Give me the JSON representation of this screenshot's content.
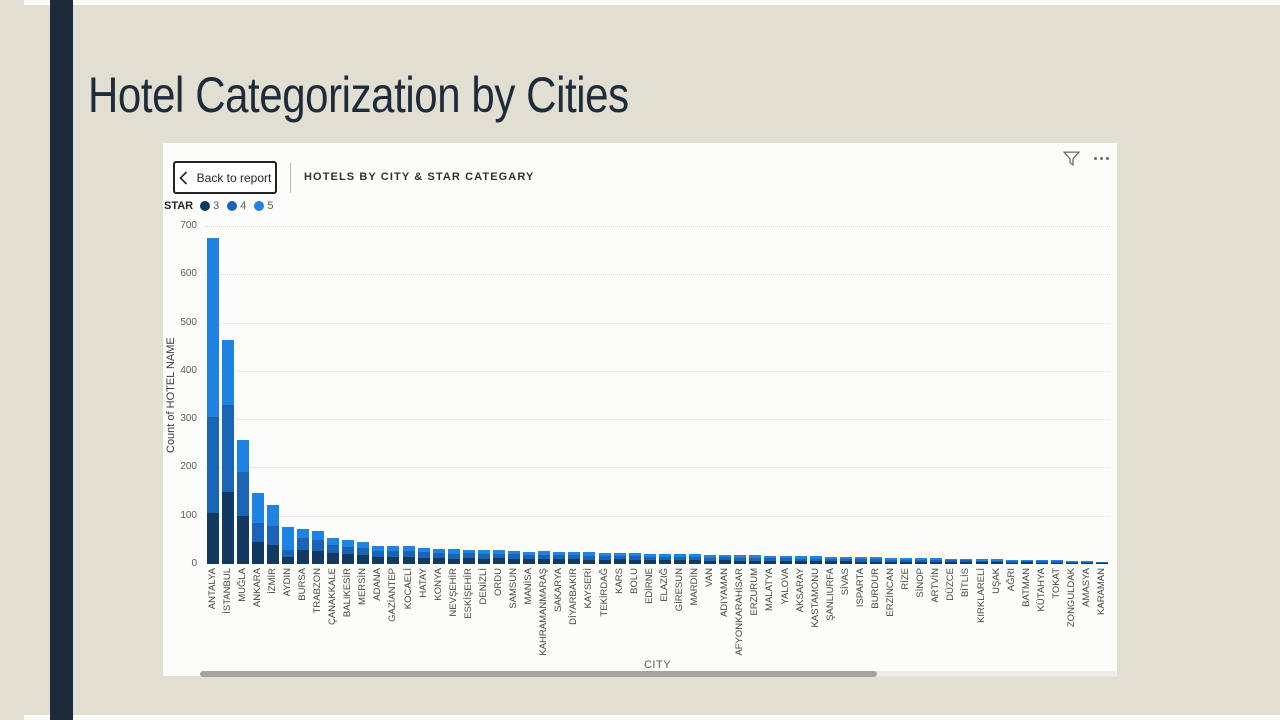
{
  "slide": {
    "title": "Hotel Categorization by Cities"
  },
  "report": {
    "back_label": "Back to report",
    "header": "HOTELS BY CITY & STAR CATEGARY",
    "icons": {
      "filter": "funnel-filter-icon",
      "more": "more-options-ellipsis-icon",
      "back": "chevron-left-icon"
    }
  },
  "legend": {
    "title": "STAR",
    "items": [
      {
        "label": "3",
        "color": "#12395f"
      },
      {
        "label": "4",
        "color": "#1a64b7"
      },
      {
        "label": "5",
        "color": "#1f83e4"
      }
    ]
  },
  "chart_data": {
    "type": "bar",
    "stacked": true,
    "title": "HOTELS BY CITY & STAR CATEGARY",
    "xlabel": "CITY",
    "ylabel": "Count of HOTEL NAME",
    "ylim": [
      0,
      700
    ],
    "yticks": [
      0,
      100,
      200,
      300,
      400,
      500,
      600,
      700
    ],
    "grid": "horizontal-dotted",
    "legend_position": "top-left",
    "categories": [
      "ANTALYA",
      "İSTANBUL",
      "MUĞLA",
      "ANKARA",
      "İZMİR",
      "AYDIN",
      "BURSA",
      "TRABZON",
      "ÇANAKKALE",
      "BALIKESİR",
      "MERSİN",
      "ADANA",
      "GAZİANTEP",
      "KOCAELİ",
      "HATAY",
      "KONYA",
      "NEVŞEHİR",
      "ESKİŞEHİR",
      "DENİZLİ",
      "ORDU",
      "SAMSUN",
      "MANİSA",
      "KAHRAMANMARAŞ",
      "SAKARYA",
      "DİYARBAKIR",
      "KAYSERİ",
      "TEKİRDAĞ",
      "KARS",
      "BOLU",
      "EDİRNE",
      "ELAZIĞ",
      "GİRESUN",
      "MARDİN",
      "VAN",
      "ADIYAMAN",
      "AFYONKARAHİSAR",
      "ERZURUM",
      "MALATYA",
      "YALOVA",
      "AKSARAY",
      "KASTAMONU",
      "ŞANLIURFA",
      "SİVAS",
      "ISPARTA",
      "BURDUR",
      "ERZİNCAN",
      "RİZE",
      "SİNOP",
      "ARTVİN",
      "DÜZCE",
      "BİTLİS",
      "KIRKLARELİ",
      "UŞAK",
      "AĞRI",
      "BATMAN",
      "KÜTAHYA",
      "TOKAT",
      "ZONGULDAK",
      "AMASYA",
      "KARAMAN"
    ],
    "series": [
      {
        "name": "3",
        "color": "#12395f",
        "values": [
          105,
          150,
          100,
          45,
          40,
          14,
          30,
          28,
          22,
          20,
          18,
          15,
          15,
          14,
          13,
          12,
          10,
          12,
          11,
          12,
          11,
          10,
          11,
          10,
          10,
          9,
          9,
          10,
          9,
          8,
          8,
          8,
          8,
          7,
          8,
          7,
          7,
          7,
          6,
          6,
          6,
          6,
          6,
          5,
          5,
          5,
          5,
          4,
          5,
          4,
          4,
          4,
          4,
          3,
          4,
          3,
          3,
          3,
          2,
          2
        ]
      },
      {
        "name": "4",
        "color": "#1a64b7",
        "values": [
          200,
          180,
          90,
          40,
          38,
          14,
          23,
          22,
          18,
          16,
          15,
          12,
          12,
          12,
          11,
          11,
          11,
          10,
          10,
          9,
          9,
          9,
          8,
          8,
          8,
          8,
          8,
          7,
          7,
          7,
          7,
          7,
          6,
          6,
          6,
          6,
          6,
          5,
          6,
          5,
          5,
          5,
          5,
          5,
          5,
          4,
          4,
          4,
          4,
          4,
          4,
          3,
          3,
          3,
          3,
          3,
          3,
          2,
          2,
          2
        ]
      },
      {
        "name": "5",
        "color": "#1f83e4",
        "values": [
          370,
          135,
          67,
          62,
          45,
          49,
          20,
          18,
          15,
          14,
          13,
          11,
          10,
          11,
          10,
          9,
          11,
          8,
          8,
          8,
          8,
          7,
          7,
          7,
          7,
          7,
          6,
          6,
          6,
          6,
          6,
          5,
          6,
          6,
          5,
          5,
          5,
          5,
          5,
          5,
          5,
          4,
          4,
          4,
          4,
          4,
          4,
          4,
          3,
          3,
          3,
          3,
          3,
          3,
          2,
          2,
          2,
          2,
          2,
          1
        ]
      }
    ]
  }
}
